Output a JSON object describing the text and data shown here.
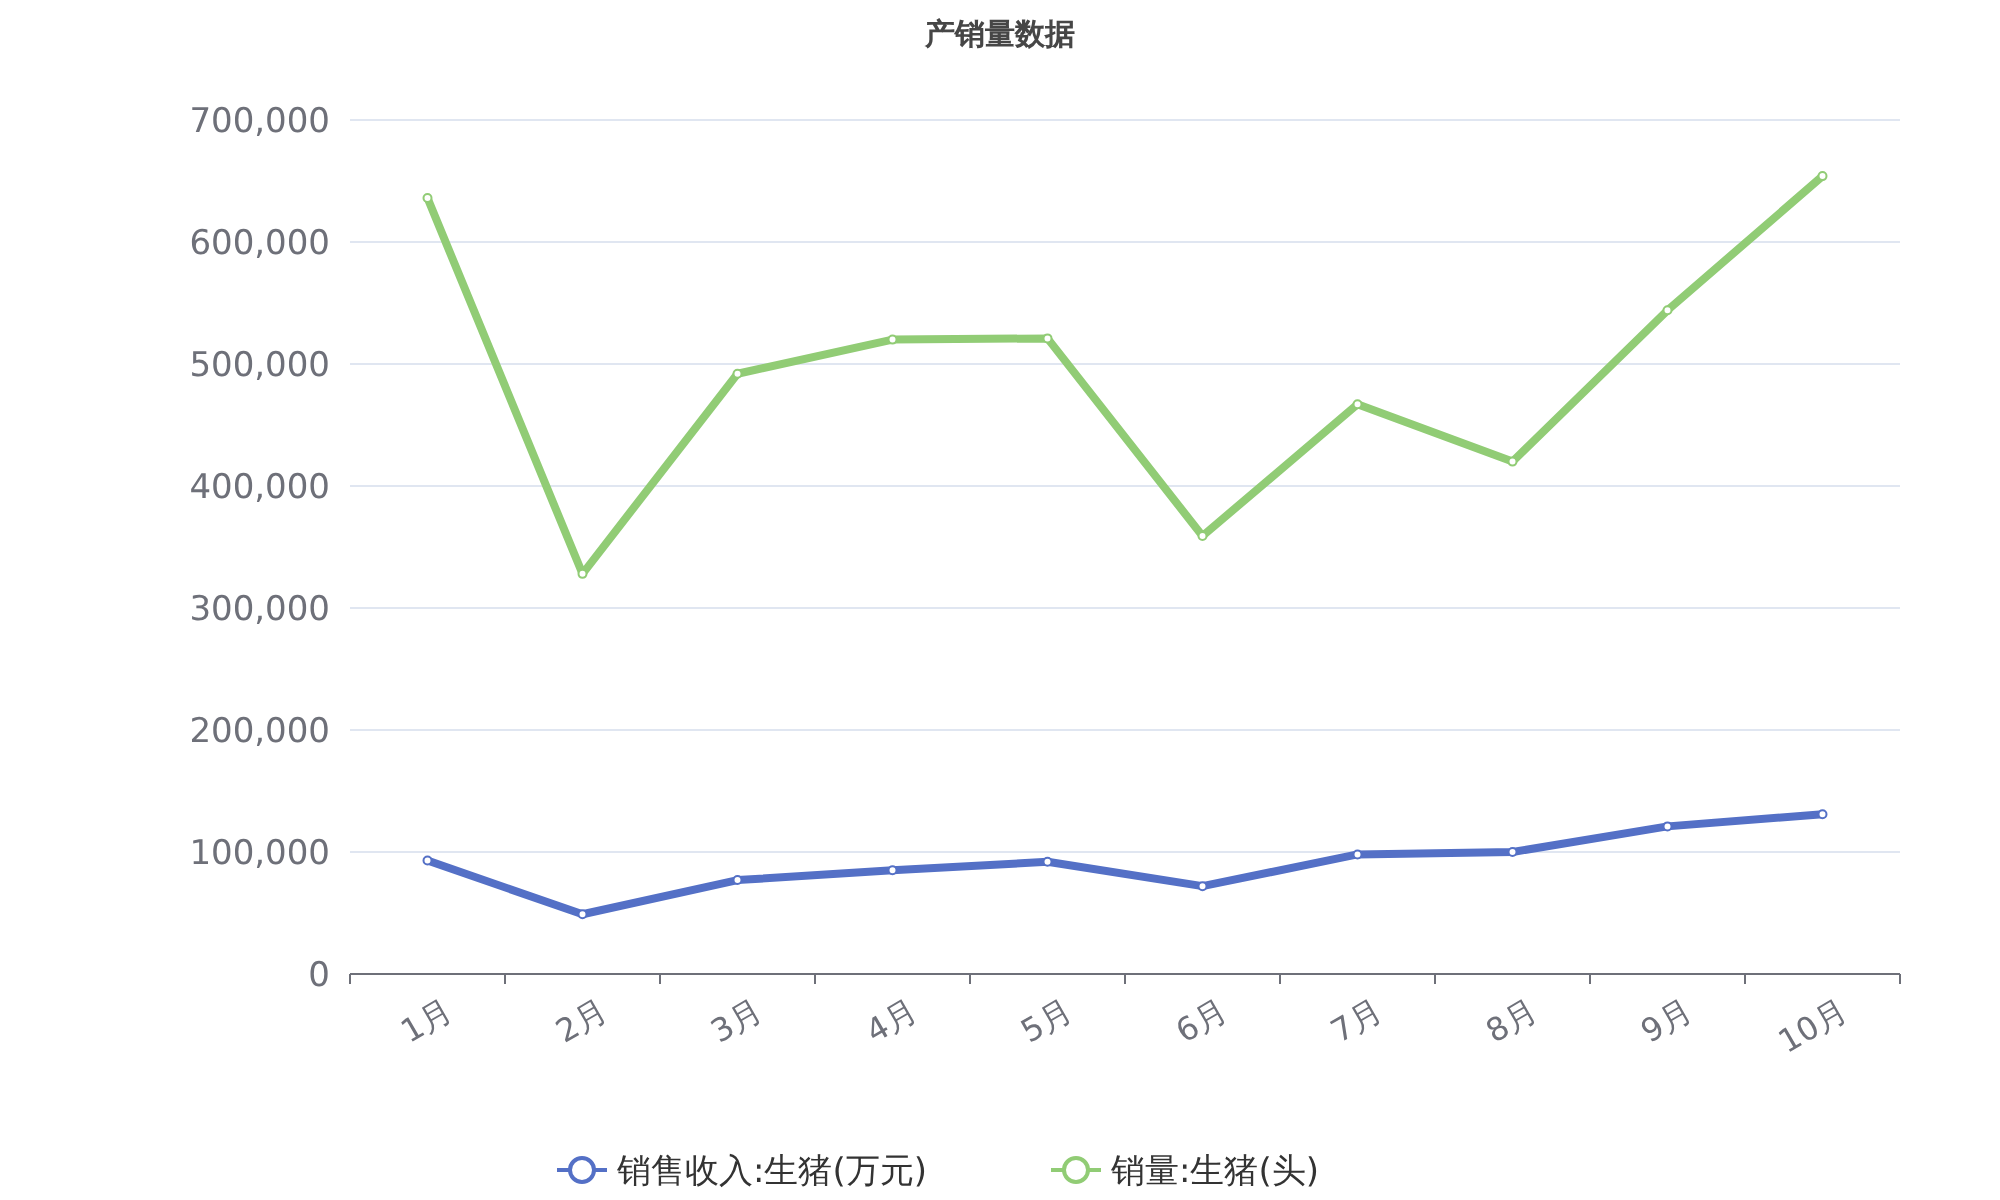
{
  "chart_data": {
    "type": "line",
    "title": "产销量数据",
    "categories": [
      "1月",
      "2月",
      "3月",
      "4月",
      "5月",
      "6月",
      "7月",
      "8月",
      "9月",
      "10月"
    ],
    "series": [
      {
        "name": "销售收入:生猪(万元)",
        "color": "#5470c6",
        "values": [
          93000,
          49000,
          77000,
          85000,
          92000,
          72000,
          98000,
          100000,
          121000,
          131000
        ]
      },
      {
        "name": "销量:生猪(头)",
        "color": "#91cc75",
        "values": [
          636000,
          328000,
          492000,
          520000,
          521000,
          359000,
          467000,
          420000,
          544000,
          654000
        ]
      }
    ],
    "ylim": [
      0,
      700000
    ],
    "yticks": [
      0,
      {
        "value": 100000,
        "label": "100,000"
      },
      {
        "value": 200000,
        "label": "200,000"
      },
      {
        "value": 300000,
        "label": "300,000"
      },
      {
        "value": 400000,
        "label": "400,000"
      },
      {
        "value": 500000,
        "label": "500,000"
      },
      {
        "value": 600000,
        "label": "600,000"
      },
      {
        "value": 700000,
        "label": "700,000"
      }
    ],
    "grid": "y",
    "legend": "bottom",
    "marker": "circle",
    "line_style": "solid"
  }
}
